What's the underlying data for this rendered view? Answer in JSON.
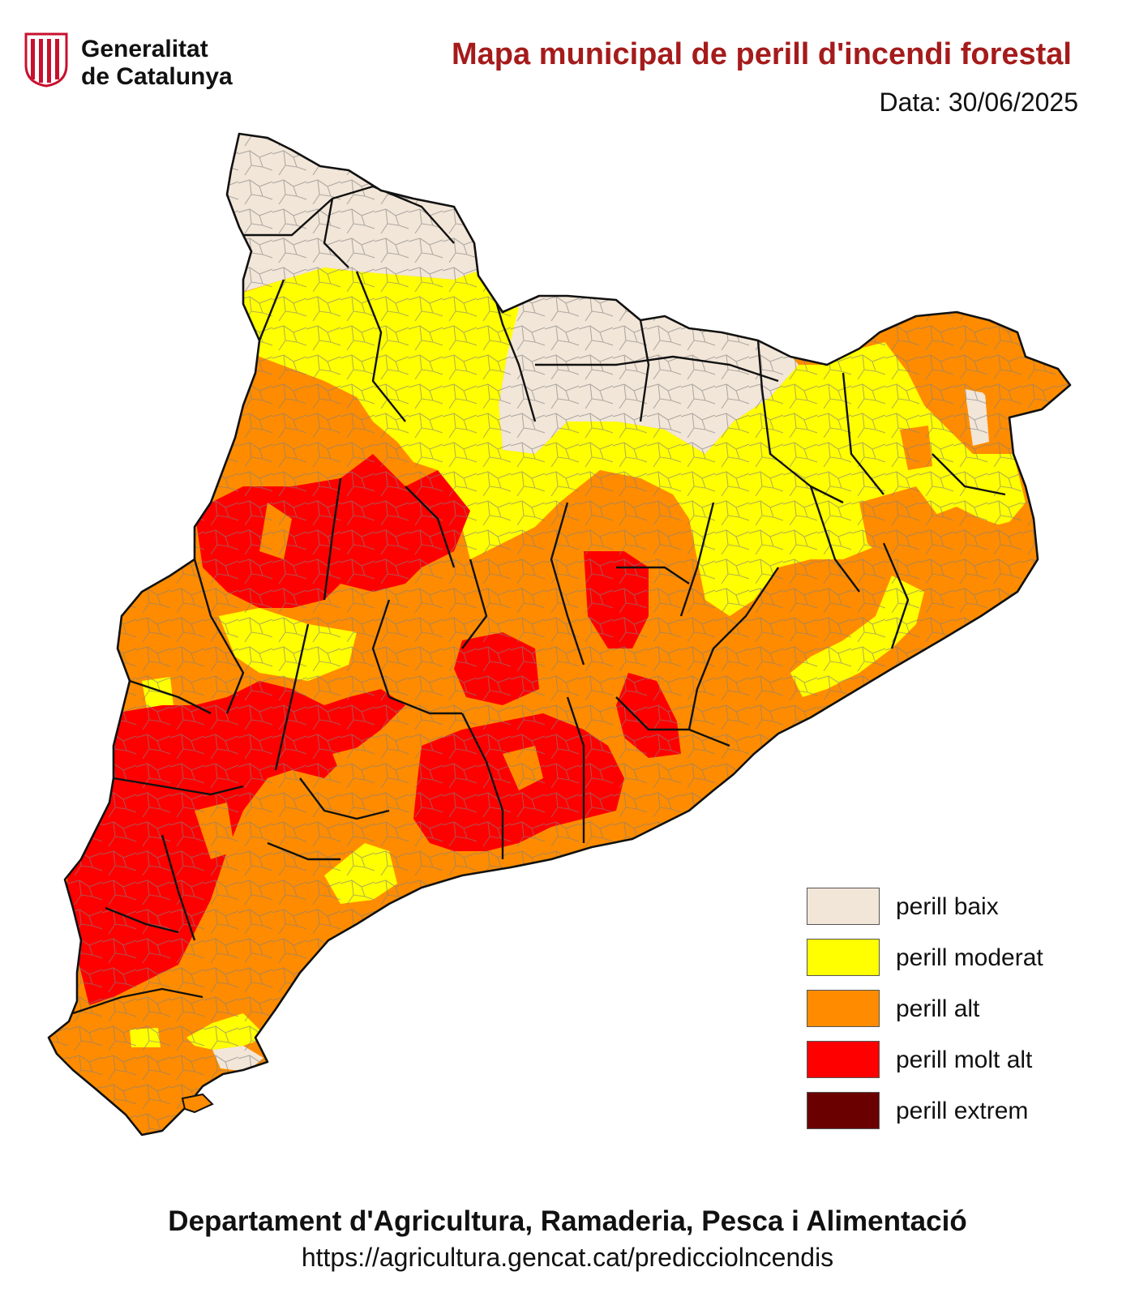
{
  "header": {
    "logo_line1": "Generalitat",
    "logo_line2": "de Catalunya",
    "title": "Mapa municipal de perill d'incendi forestal",
    "date": "Data: 30/06/2025"
  },
  "legend": [
    {
      "label": "perill baix",
      "color": "#f2e6d8"
    },
    {
      "label": "perill moderat",
      "color": "#ffff00"
    },
    {
      "label": "perill alt",
      "color": "#ff8c00"
    },
    {
      "label": "perill molt alt",
      "color": "#ff0000"
    },
    {
      "label": "perill extrem",
      "color": "#6b0000"
    }
  ],
  "footer": {
    "department": "Departament d'Agricultura, Ramaderia, Pesca i Alimentació",
    "url": "https://agricultura.gencat.cat/predicciolncendis"
  }
}
